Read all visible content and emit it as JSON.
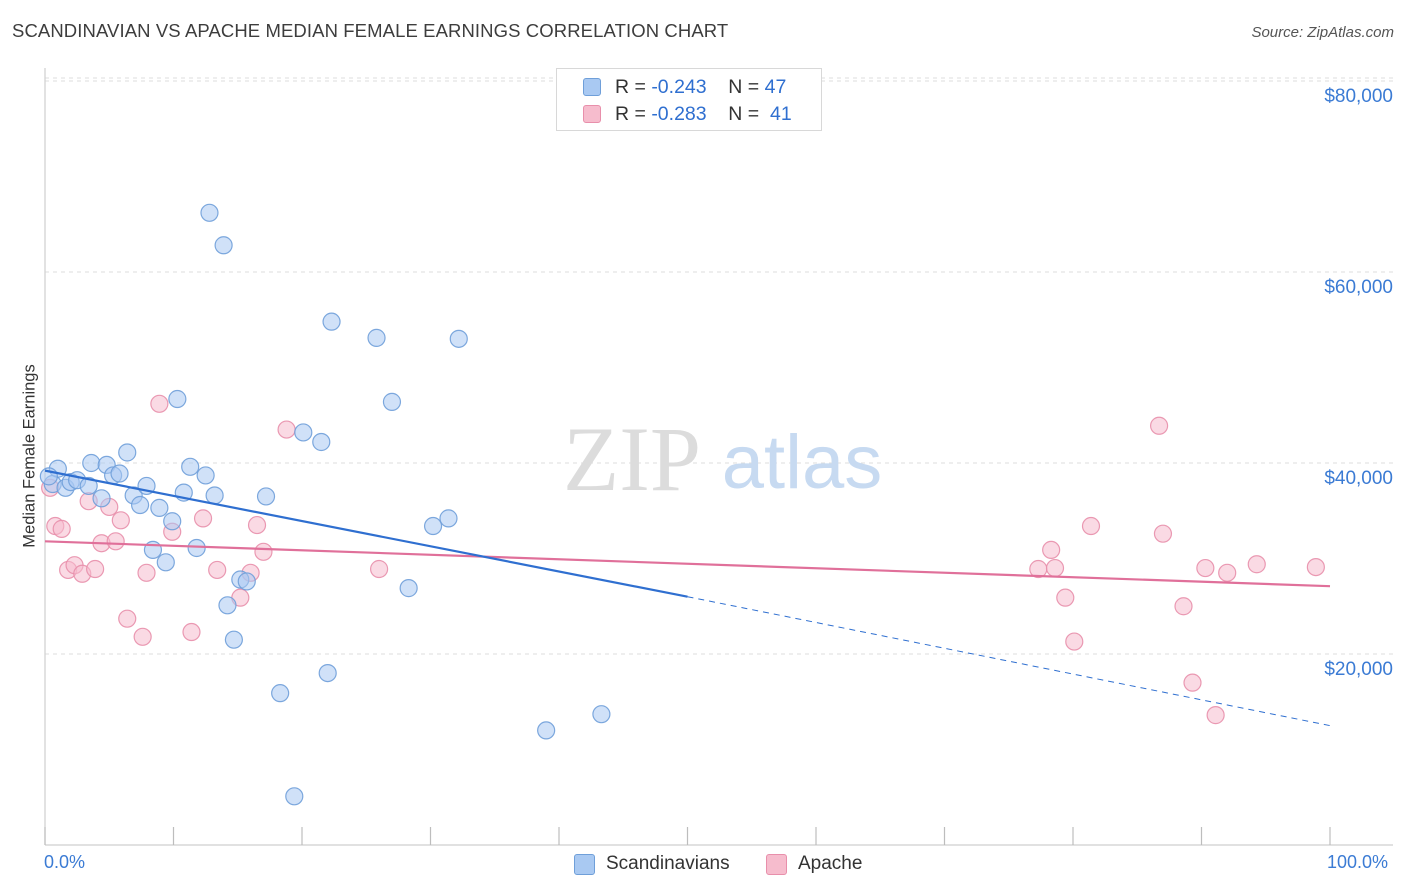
{
  "header": {
    "title": "SCANDINAVIAN VS APACHE MEDIAN FEMALE EARNINGS CORRELATION CHART",
    "source": "Source: ZipAtlas.com"
  },
  "watermark": {
    "zip": "ZIP",
    "atlas": "atlas"
  },
  "legend": {
    "rows": [
      {
        "r_label": "R =",
        "r_value": "-0.243",
        "n_label": "N =",
        "n_value": "47"
      },
      {
        "r_label": "R =",
        "r_value": "-0.283",
        "n_label": "N =",
        "n_value": "41"
      }
    ]
  },
  "bottom_legend": {
    "series1": "Scandinavians",
    "series2": "Apache"
  },
  "colors": {
    "blue_fill": "#a9c9f2",
    "blue_stroke": "#6f9fd9",
    "blue_line": "#2f6fd0",
    "pink_fill": "#f6bccd",
    "pink_stroke": "#e88fab",
    "pink_line": "#e0709a",
    "tick_label": "#3b7bd4",
    "grid": "#dedede"
  },
  "chart_data": {
    "type": "scatter",
    "title": "SCANDINAVIAN VS APACHE MEDIAN FEMALE EARNINGS CORRELATION CHART",
    "xlabel": "",
    "ylabel": "Median Female Earnings",
    "xlim": [
      0,
      100
    ],
    "ylim": [
      0,
      82000
    ],
    "x_tick_labels": [
      "0.0%",
      "100.0%"
    ],
    "y_ticks": [
      20000,
      40000,
      60000,
      80000
    ],
    "y_tick_labels": [
      "$20,000",
      "$40,000",
      "$60,000",
      "$80,000"
    ],
    "series": [
      {
        "name": "Scandinavians",
        "r": -0.243,
        "n": 47,
        "trend": {
          "x_start": 0,
          "y_start": 39200,
          "x_solid_end": 50,
          "y_solid_end": 26000,
          "x_dash_end": 100,
          "y_dash_end": 12500
        },
        "points": [
          [
            0.6,
            37800
          ],
          [
            1.0,
            39400
          ],
          [
            1.6,
            37400
          ],
          [
            2.0,
            38000
          ],
          [
            2.5,
            38200
          ],
          [
            3.4,
            37600
          ],
          [
            3.6,
            40000
          ],
          [
            4.4,
            36300
          ],
          [
            4.8,
            39800
          ],
          [
            5.3,
            38700
          ],
          [
            5.8,
            38900
          ],
          [
            6.4,
            41100
          ],
          [
            6.9,
            36600
          ],
          [
            7.4,
            35600
          ],
          [
            7.9,
            37600
          ],
          [
            8.4,
            30900
          ],
          [
            8.9,
            35300
          ],
          [
            9.4,
            29600
          ],
          [
            9.9,
            33900
          ],
          [
            10.3,
            46700
          ],
          [
            10.8,
            36900
          ],
          [
            11.3,
            39600
          ],
          [
            11.8,
            31100
          ],
          [
            12.5,
            38700
          ],
          [
            12.8,
            66200
          ],
          [
            13.2,
            36600
          ],
          [
            13.9,
            62800
          ],
          [
            14.2,
            25100
          ],
          [
            14.7,
            21500
          ],
          [
            15.2,
            27800
          ],
          [
            15.7,
            27600
          ],
          [
            17.2,
            36500
          ],
          [
            18.3,
            15900
          ],
          [
            19.4,
            5100
          ],
          [
            20.1,
            43200
          ],
          [
            21.5,
            42200
          ],
          [
            22.0,
            18000
          ],
          [
            22.3,
            54800
          ],
          [
            25.8,
            53100
          ],
          [
            27.0,
            46400
          ],
          [
            28.3,
            26900
          ],
          [
            30.2,
            33400
          ],
          [
            31.4,
            34200
          ],
          [
            32.2,
            53000
          ],
          [
            39.0,
            12000
          ],
          [
            43.3,
            13700
          ],
          [
            0.3,
            38600
          ]
        ]
      },
      {
        "name": "Apache",
        "r": -0.283,
        "n": 41,
        "trend": {
          "x_start": 0,
          "y_start": 31800,
          "x_end": 100,
          "y_end": 27100
        },
        "points": [
          [
            0.4,
            37400
          ],
          [
            0.8,
            33400
          ],
          [
            1.3,
            33100
          ],
          [
            1.8,
            28800
          ],
          [
            2.3,
            29300
          ],
          [
            2.9,
            28400
          ],
          [
            3.4,
            36000
          ],
          [
            3.9,
            28900
          ],
          [
            4.4,
            31600
          ],
          [
            5.0,
            35400
          ],
          [
            5.5,
            31800
          ],
          [
            5.9,
            34000
          ],
          [
            6.4,
            23700
          ],
          [
            7.6,
            21800
          ],
          [
            7.9,
            28500
          ],
          [
            8.9,
            46200
          ],
          [
            9.9,
            32800
          ],
          [
            11.4,
            22300
          ],
          [
            12.3,
            34200
          ],
          [
            13.4,
            28800
          ],
          [
            15.2,
            25900
          ],
          [
            16.0,
            28500
          ],
          [
            16.5,
            33500
          ],
          [
            17.0,
            30700
          ],
          [
            18.8,
            43500
          ],
          [
            26.0,
            28900
          ],
          [
            77.3,
            28900
          ],
          [
            78.3,
            30900
          ],
          [
            78.6,
            29000
          ],
          [
            79.4,
            25900
          ],
          [
            80.1,
            21300
          ],
          [
            81.4,
            33400
          ],
          [
            86.7,
            43900
          ],
          [
            87.0,
            32600
          ],
          [
            88.6,
            25000
          ],
          [
            89.3,
            17000
          ],
          [
            90.3,
            29000
          ],
          [
            91.1,
            13600
          ],
          [
            92.0,
            28500
          ],
          [
            94.3,
            29400
          ],
          [
            98.9,
            29100
          ]
        ]
      }
    ]
  }
}
